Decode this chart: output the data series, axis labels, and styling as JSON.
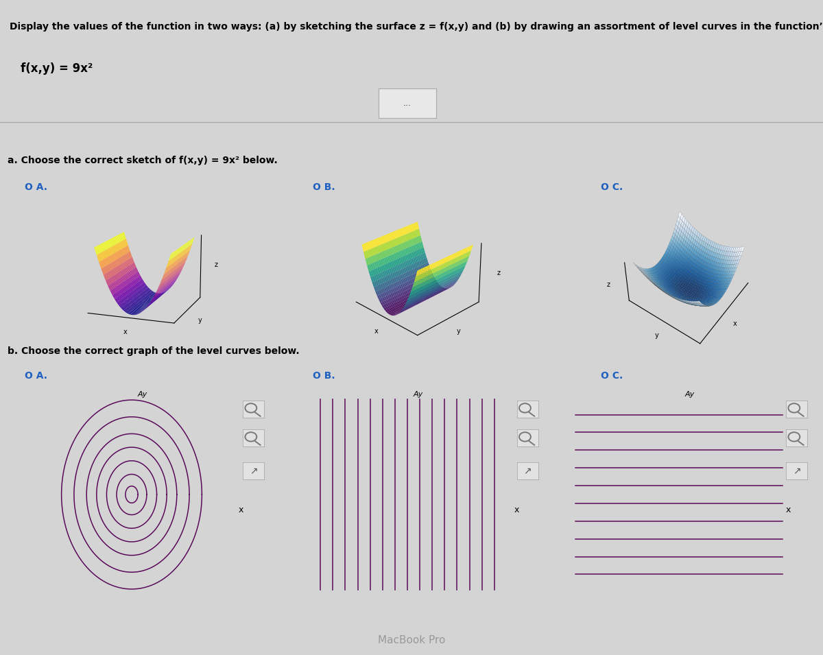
{
  "title_text": "Display the values of the function in two ways: (a) by sketching the surface z = f(x,y) and (b) by drawing an assortment of level curves in the function’s domain.",
  "function_text": "f(x,y) = 9x²",
  "part_a_label": "a. Choose the correct sketch of f(x,y) = 9x² below.",
  "part_b_label": "b. Choose the correct graph of the level curves below.",
  "option_labels": [
    "O A.",
    "O B.",
    "O C."
  ],
  "bg_color": "#d4d4d4",
  "text_color": "#000000",
  "option_color": "#2060c0",
  "separator_color": "#aaaaaa",
  "lc_color": "#5a0a5a",
  "footer_bg": "#2a2a2a",
  "footer_text": "#999999"
}
